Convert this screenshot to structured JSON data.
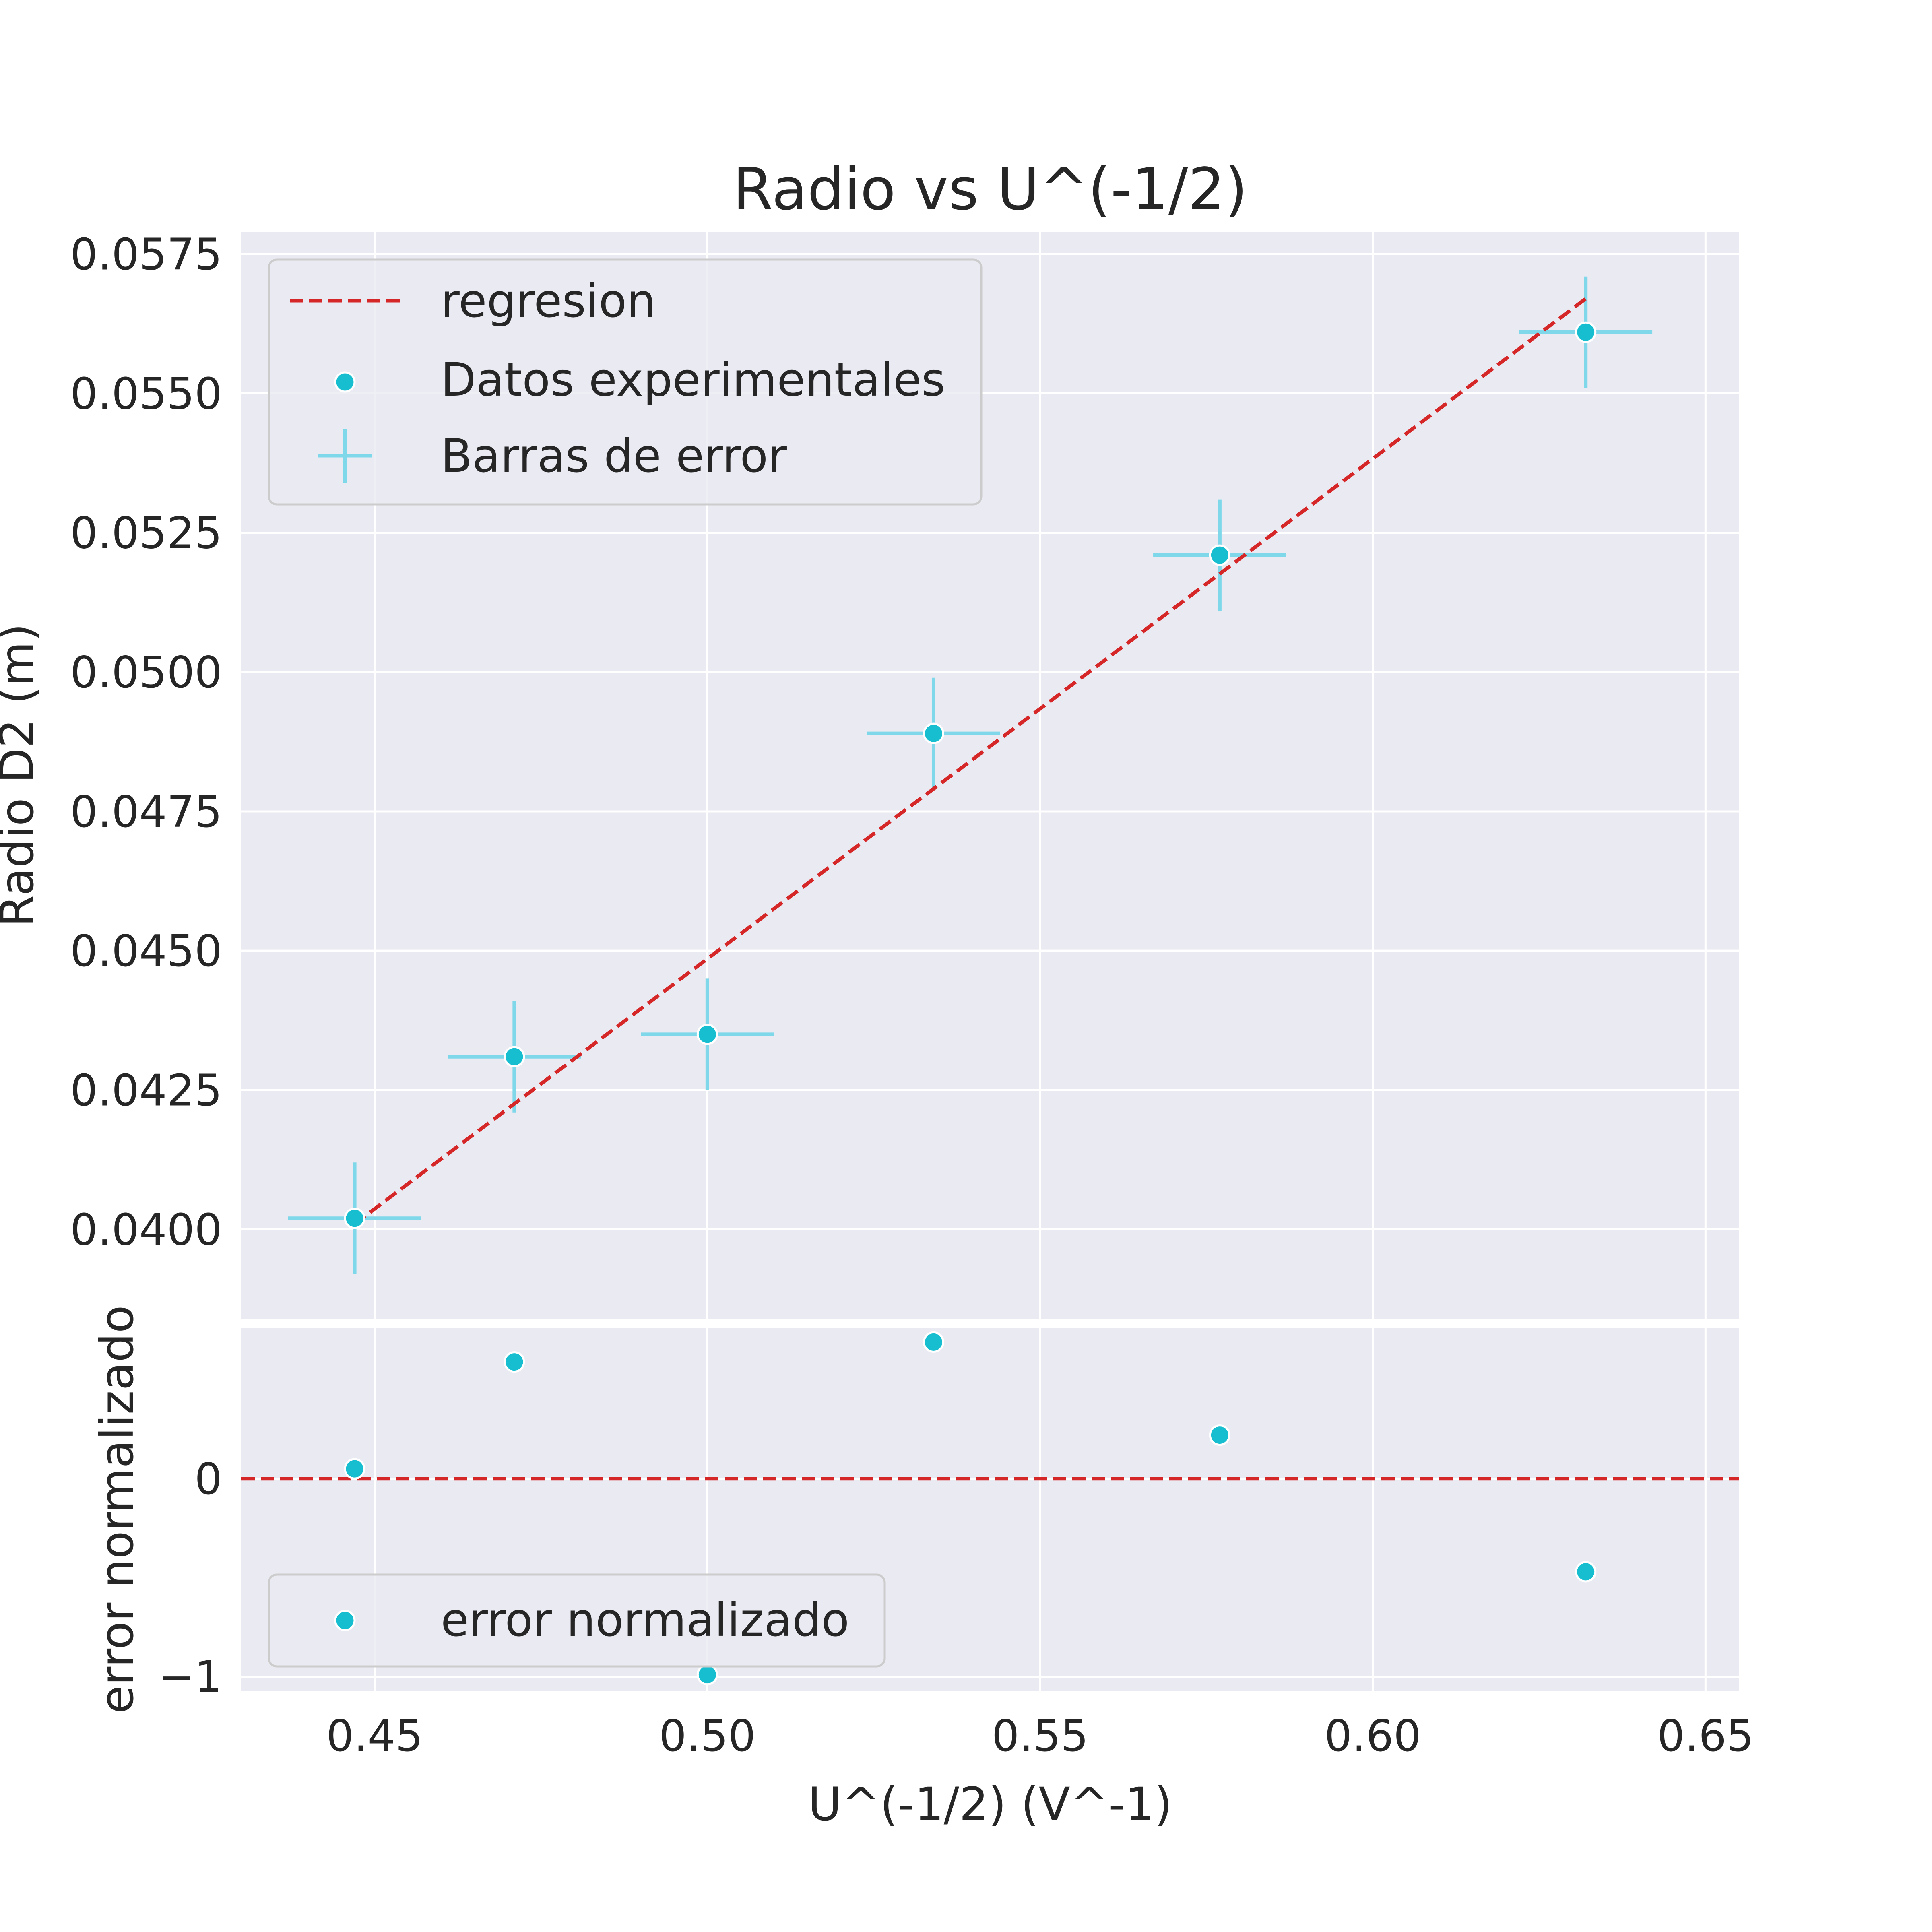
{
  "chart_data": [
    {
      "type": "scatter",
      "title": "Radio vs U^(-1/2)",
      "xlabel": "",
      "ylabel": "Radio D2 (m)",
      "xlim": [
        0.43,
        0.655
      ],
      "ylim": [
        0.0384,
        0.0579
      ],
      "x_ticks": [
        "0.45",
        "0.50",
        "0.55",
        "0.60",
        "0.65"
      ],
      "x_tick_values": [
        0.45,
        0.5,
        0.55,
        0.6,
        0.65
      ],
      "y_ticks": [
        "0.0400",
        "0.0425",
        "0.0450",
        "0.0475",
        "0.0500",
        "0.0525",
        "0.0550",
        "0.0575"
      ],
      "y_tick_values": [
        0.04,
        0.0425,
        0.045,
        0.0475,
        0.05,
        0.0525,
        0.055,
        0.0575
      ],
      "grid": true,
      "legend_position": "upper-left",
      "series": [
        {
          "name": "regresion",
          "kind": "line",
          "style": "dashed",
          "color": "#d62728",
          "x": [
            0.447,
            0.632
          ],
          "y": [
            0.0401,
            0.0567
          ]
        },
        {
          "name": "Datos experimentales",
          "kind": "scatter",
          "color": "#17becf",
          "x": [
            0.447,
            0.471,
            0.5,
            0.534,
            0.577,
            0.632
          ],
          "y": [
            0.0402,
            0.0431,
            0.0435,
            0.0489,
            0.0521,
            0.0561
          ]
        },
        {
          "name": "Barras de error",
          "kind": "errorbar",
          "color": "#7fd8ea",
          "x": [
            0.447,
            0.471,
            0.5,
            0.534,
            0.577,
            0.632
          ],
          "y": [
            0.0402,
            0.0431,
            0.0435,
            0.0489,
            0.0521,
            0.0561
          ],
          "xerr": [
            0.01,
            0.01,
            0.01,
            0.01,
            0.01,
            0.01
          ],
          "yerr": [
            0.001,
            0.001,
            0.001,
            0.001,
            0.001,
            0.001
          ]
        }
      ]
    },
    {
      "type": "scatter",
      "title": "",
      "xlabel": "U^(-1/2) (V^-1)",
      "ylabel": "error normalizado",
      "xlim": [
        0.43,
        0.655
      ],
      "ylim": [
        -1.07,
        0.76
      ],
      "x_ticks": [
        "0.45",
        "0.50",
        "0.55",
        "0.60",
        "0.65"
      ],
      "x_tick_values": [
        0.45,
        0.5,
        0.55,
        0.6,
        0.65
      ],
      "y_ticks": [
        "−1",
        "0"
      ],
      "y_tick_values": [
        -1,
        0
      ],
      "grid": true,
      "legend_position": "lower-left",
      "series": [
        {
          "name": "error normalizado",
          "kind": "scatter",
          "color": "#17becf",
          "x": [
            0.447,
            0.471,
            0.5,
            0.534,
            0.577,
            0.632
          ],
          "y": [
            0.05,
            0.59,
            -0.99,
            0.69,
            0.22,
            -0.47
          ]
        },
        {
          "name": "",
          "kind": "line",
          "style": "dashed",
          "color": "#d62728",
          "x": [
            0.43,
            0.655
          ],
          "y": [
            0,
            0
          ]
        }
      ]
    }
  ]
}
